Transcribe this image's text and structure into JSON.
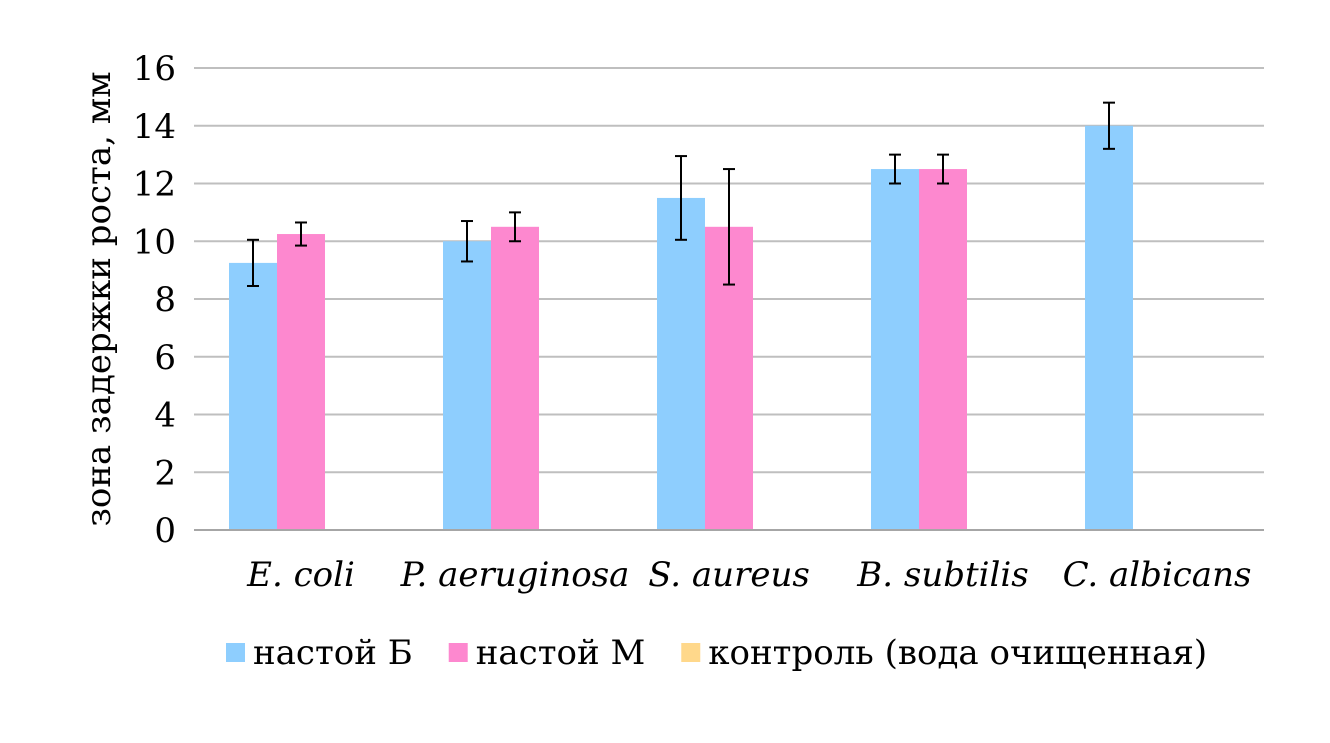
{
  "chart_data": {
    "type": "bar",
    "categories": [
      "E. coli",
      "P. aeruginosa",
      "S. aureus",
      "B. subtilis",
      "C. albicans"
    ],
    "series": [
      {
        "name": "настой Б",
        "color": "#8ecefe",
        "values": [
          9.25,
          10.0,
          11.5,
          12.5,
          14.0
        ],
        "errors": [
          0.8,
          0.7,
          1.45,
          0.5,
          0.8
        ]
      },
      {
        "name": "настой М",
        "color": "#fd88cf",
        "values": [
          10.25,
          10.5,
          10.5,
          12.5,
          null
        ],
        "errors": [
          0.4,
          0.5,
          2.0,
          0.5,
          null
        ]
      },
      {
        "name": "контроль (вода очищенная)",
        "color": "#ffd88b",
        "values": [
          0,
          0,
          0,
          0,
          0
        ],
        "errors": [
          null,
          null,
          null,
          null,
          null
        ]
      }
    ],
    "title": "",
    "xlabel": "",
    "ylabel": "зона задержки роста, мм",
    "ylim": [
      0,
      16
    ],
    "yticks": [
      "0",
      "2",
      "4",
      "6",
      "8",
      "10",
      "12",
      "14",
      "16"
    ],
    "grid": true,
    "legend_position": "bottom"
  }
}
